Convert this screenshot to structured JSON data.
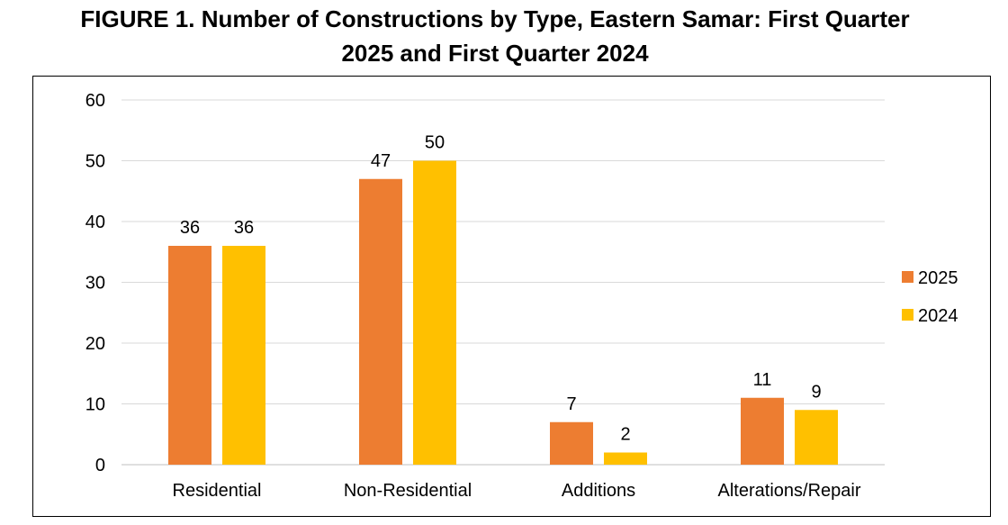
{
  "title_line1": "FIGURE 1. Number of Constructions by Type, Eastern Samar: First Quarter",
  "title_line2": "2025 and First Quarter 2024",
  "chart_data": {
    "type": "bar",
    "categories": [
      "Residential",
      "Non-Residential",
      "Additions",
      "Alterations/Repair"
    ],
    "series": [
      {
        "name": "2025",
        "values": [
          36,
          47,
          7,
          11
        ],
        "color": "#ED7D31"
      },
      {
        "name": "2024",
        "values": [
          36,
          50,
          2,
          9
        ],
        "color": "#FFC000"
      }
    ],
    "ylim": [
      0,
      60
    ],
    "yticks": [
      0,
      10,
      20,
      30,
      40,
      50,
      60
    ],
    "grid": true,
    "legend": "right",
    "data_labels": true
  }
}
